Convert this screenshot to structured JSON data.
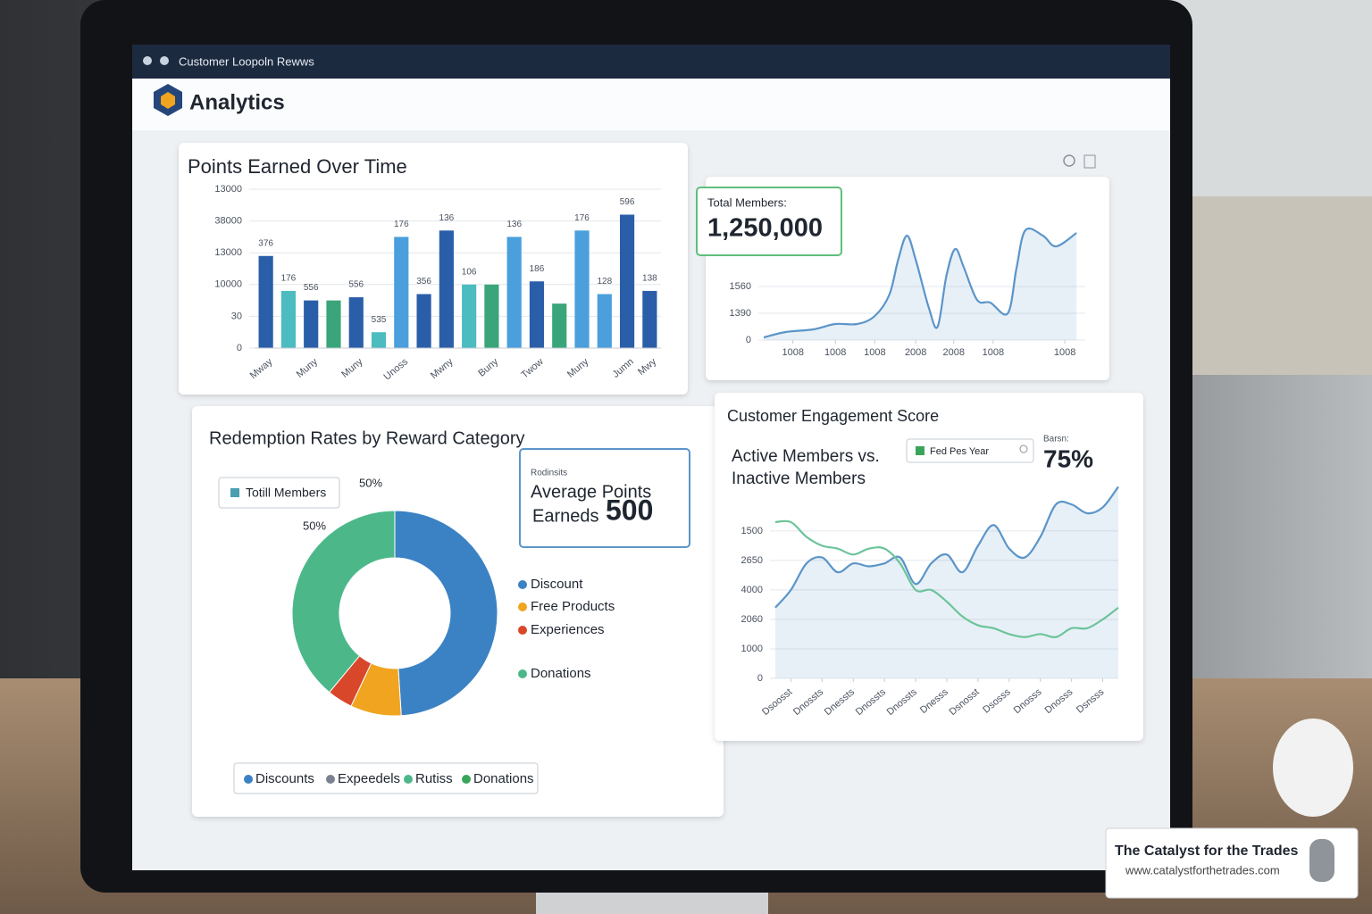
{
  "window_title": "Customer Loopoln Rewws",
  "app_name": "Analytics",
  "cards": {
    "total_members": {
      "label": "Total Members:",
      "value": "1,250,000"
    },
    "average_points": {
      "label": "Rodinsits",
      "title": [
        "Average Points",
        "Earneds"
      ],
      "value": "500"
    },
    "engagement": {
      "filter": "Fed Pes Year",
      "label": "Barsn:",
      "value": "75%"
    }
  },
  "chart_data": [
    {
      "type": "bar",
      "title": "Points Earned Over Time",
      "categories": [
        "Mway",
        null,
        "Muny",
        null,
        "Muny",
        null,
        "Unoss",
        null,
        "Mwny",
        null,
        "Buny",
        null,
        "Twow",
        null,
        "Muny",
        null,
        "Jumn",
        "Mwy"
      ],
      "values": [
        2.9,
        1.8,
        1.5,
        1.5,
        1.6,
        0.5,
        3.5,
        1.7,
        3.7,
        2.0,
        2.0,
        3.5,
        2.1,
        1.4,
        3.7,
        1.7,
        4.2,
        1.8
      ],
      "colors": [
        "#2a5ea8",
        "#4cbcc0",
        "#2a5ea8",
        "#3aa57a",
        "#2a5ea8",
        "#4cbcc0",
        "#4a9fdc",
        "#2a5ea8",
        "#2a5ea8",
        "#4cbcc0",
        "#3aa57a",
        "#4a9fdc",
        "#2a5ea8",
        "#3aa57a",
        "#4a9fdc",
        "#4a9fdc",
        "#2a5ea8",
        "#2a5ea8"
      ],
      "annotations": [
        "376",
        "176",
        "556",
        null,
        "556",
        "535",
        "176",
        "356",
        "136",
        "106",
        null,
        "136",
        "186",
        null,
        "176",
        "128",
        "596",
        "138"
      ],
      "ylim": [
        0,
        5
      ],
      "yticks": [
        0,
        {
          "value": 1,
          "label": "30"
        },
        {
          "value": 2,
          "label": "10000"
        },
        {
          "value": 3,
          "label": "13000"
        },
        {
          "value": 4,
          "label": "38000"
        },
        {
          "value": 5,
          "label": "13000"
        }
      ],
      "grid": true
    },
    {
      "type": "line",
      "x": [
        0,
        1.5,
        3.4,
        4.9,
        6.4,
        7.6,
        8.6,
        9.2,
        9.8,
        10.4,
        11.3,
        11.9,
        12.5,
        13.1,
        13.7,
        14.6,
        15.5,
        16.7,
        17.3,
        17.9,
        19.1,
        20.0,
        21.4
      ],
      "series": [
        {
          "color": "#5b95c9",
          "fill": true,
          "values": [
            0.1,
            0.3,
            0.4,
            0.6,
            0.6,
            0.9,
            1.7,
            3.0,
            3.9,
            3.0,
            1.2,
            0.5,
            2.4,
            3.4,
            2.7,
            1.5,
            1.4,
            1.0,
            2.7,
            4.1,
            3.9,
            3.5,
            4.0
          ]
        }
      ],
      "xlim": [
        0,
        22
      ],
      "xticks": [
        {
          "value": 2,
          "label": "1008"
        },
        {
          "value": 4.9,
          "label": "1008"
        },
        {
          "value": 7.6,
          "label": "1008"
        },
        {
          "value": 10.4,
          "label": "2008"
        },
        {
          "value": 13,
          "label": "2008"
        },
        {
          "value": 15.7,
          "label": "1008"
        },
        {
          "value": 20.6,
          "label": "1008"
        }
      ],
      "ylim": [
        0,
        4.7
      ],
      "yticks": [
        0,
        {
          "value": 1,
          "label": "1390"
        },
        {
          "value": 2,
          "label": "1560"
        }
      ],
      "grid": true
    },
    {
      "type": "pie",
      "title": "Redemption Rates by Reward Category",
      "categories": [
        "Discount",
        "Free Products",
        "Experiences",
        "Donations"
      ],
      "values": [
        49,
        8,
        4,
        39
      ],
      "colors": [
        "#3b82c4",
        "#f0a420",
        "#d9472b",
        "#4cb88a"
      ],
      "annotations": [
        "50%",
        "50%"
      ],
      "box_label": "Totill Members",
      "bottom_legend": [
        {
          "label": "Discounts",
          "color": "#3b82c4"
        },
        {
          "label": "Expeedels",
          "color": "#7a8290"
        },
        {
          "label": "Rutiss",
          "color": "#4cb88a"
        },
        {
          "label": "Donations",
          "color": "#3aa55a"
        }
      ]
    },
    {
      "type": "line",
      "title": "Customer Engagement Score",
      "subtitle": [
        "Active Members vs.",
        "Inactive Members"
      ],
      "x": [
        0,
        1,
        2,
        3,
        4,
        5,
        6,
        7,
        8,
        9,
        10,
        11,
        12,
        13,
        14,
        15,
        16,
        17,
        18,
        19,
        20,
        21,
        22
      ],
      "series": [
        {
          "color": "#5b95c9",
          "fill": true,
          "values": [
            2.4,
            3.0,
            3.9,
            4.1,
            3.6,
            3.9,
            3.8,
            3.9,
            4.1,
            3.2,
            3.9,
            4.2,
            3.6,
            4.5,
            5.2,
            4.4,
            4.1,
            4.8,
            5.9,
            5.9,
            5.6,
            5.8,
            6.5
          ]
        },
        {
          "color": "#6cc49a",
          "fill": false,
          "values": [
            5.3,
            5.3,
            4.8,
            4.5,
            4.4,
            4.2,
            4.4,
            4.4,
            3.9,
            3.0,
            3.0,
            2.6,
            2.1,
            1.8,
            1.7,
            1.5,
            1.4,
            1.5,
            1.4,
            1.7,
            1.7,
            2.0,
            2.4
          ]
        }
      ],
      "xlim": [
        0,
        22
      ],
      "xticks": [
        {
          "value": 1,
          "label": "Dsoosst"
        },
        {
          "value": 3,
          "label": "Dnossts"
        },
        {
          "value": 5,
          "label": "Dnessts"
        },
        {
          "value": 7,
          "label": "Dnossts"
        },
        {
          "value": 9,
          "label": "Dnossts"
        },
        {
          "value": 11,
          "label": "Dnesss"
        },
        {
          "value": 13,
          "label": "Dsnosst"
        },
        {
          "value": 15,
          "label": "Dsosss"
        },
        {
          "value": 17,
          "label": "Dnosss"
        },
        {
          "value": 19,
          "label": "Dnosss"
        },
        {
          "value": 21,
          "label": "Dsnsss"
        }
      ],
      "ylim": [
        0,
        6.6
      ],
      "yticks": [
        0,
        {
          "value": 1,
          "label": "1000"
        },
        {
          "value": 2,
          "label": "2060"
        },
        {
          "value": 3,
          "label": "4000"
        },
        {
          "value": 4,
          "label": "2650"
        },
        {
          "value": 5,
          "label": "1500"
        }
      ],
      "grid": true
    }
  ],
  "watermark": {
    "title": "The Catalyst for the Trades",
    "url": "www.catalystforthetrades.com"
  }
}
